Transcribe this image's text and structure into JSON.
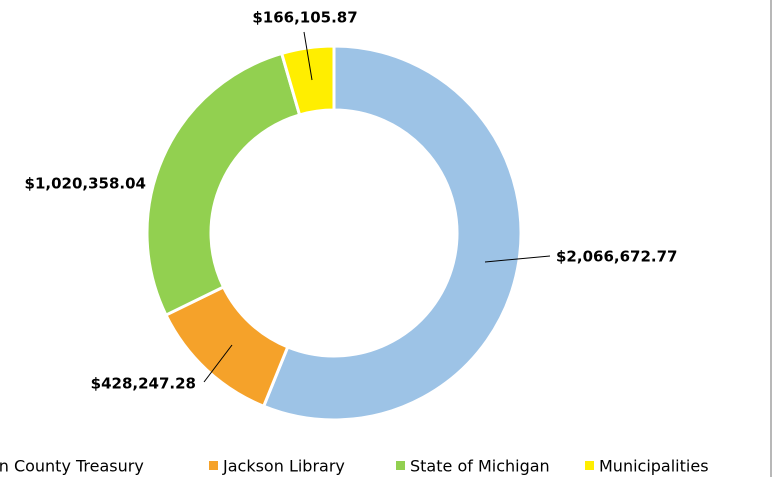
{
  "chart_data": {
    "type": "donut",
    "categories": [
      "Jackson County Treasury",
      "Jackson Library",
      "State of Michigan",
      "Municipalities"
    ],
    "values": [
      2066672.77,
      428247.28,
      1020358.04,
      166105.87
    ],
    "value_labels": [
      "$2,066,672.77",
      "$428,247.28",
      "$1,020,358.04",
      "$166,105.87"
    ],
    "colors": [
      "#9dc3e6",
      "#f5a22a",
      "#92d050",
      "#ffee00"
    ],
    "legend": "bottom"
  }
}
